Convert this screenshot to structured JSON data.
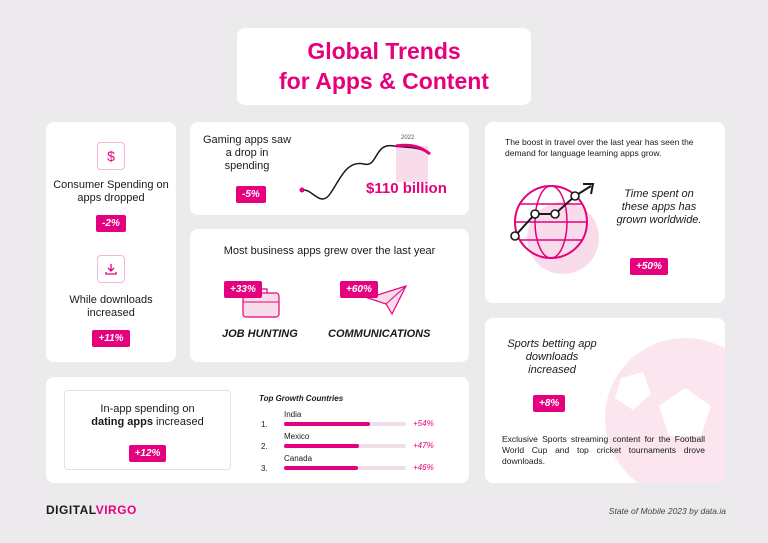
{
  "title": {
    "line1": "Global Trends",
    "line2": "for Apps & Content"
  },
  "spending": {
    "label": "Consumer Spending on apps dropped",
    "change": "-2%",
    "icon": "dollar-icon"
  },
  "downloads": {
    "label": "While downloads increased",
    "change": "+11%",
    "icon": "download-icon"
  },
  "gaming": {
    "label": "Gaming apps saw a drop in spending",
    "change": "-5%",
    "year": "2022",
    "amount": "$110 billion"
  },
  "business": {
    "title": "Most business apps grew over the last year",
    "job_change": "+33%",
    "job_label": "JOB HUNTING",
    "comm_change": "+60%",
    "comm_label": "COMMUNICATIONS"
  },
  "language": {
    "intro": "The boost in travel over the last year has seen the demand for language learning apps grow.",
    "caption": "Time spent on these apps has grown worldwide.",
    "change": "+50%"
  },
  "sports": {
    "label": "Sports betting app downloads increased",
    "change": "+8%",
    "note": "Exclusive Sports streaming content for the Football World Cup and top cricket tournaments drove downloads."
  },
  "dating": {
    "label_pre": "In-app spending on",
    "label_bold": "dating apps",
    "label_post": "increased",
    "change": "+12%"
  },
  "countries": {
    "title": "Top Growth Countries",
    "items": [
      {
        "rank": "1.",
        "name": "India",
        "change": "+54%",
        "fill": 0.54
      },
      {
        "rank": "2.",
        "name": "Mexico",
        "change": "+47%",
        "fill": 0.47
      },
      {
        "rank": "3.",
        "name": "Canada",
        "change": "+46%",
        "fill": 0.46
      }
    ]
  },
  "footer": {
    "brand_a": "DIGITAL",
    "brand_b": "VIRGO",
    "source": "State of Mobile 2023 by data.ia"
  },
  "colors": {
    "accent": "#e5007e",
    "background": "#eceaed",
    "light_pink": "#f9dcea"
  }
}
